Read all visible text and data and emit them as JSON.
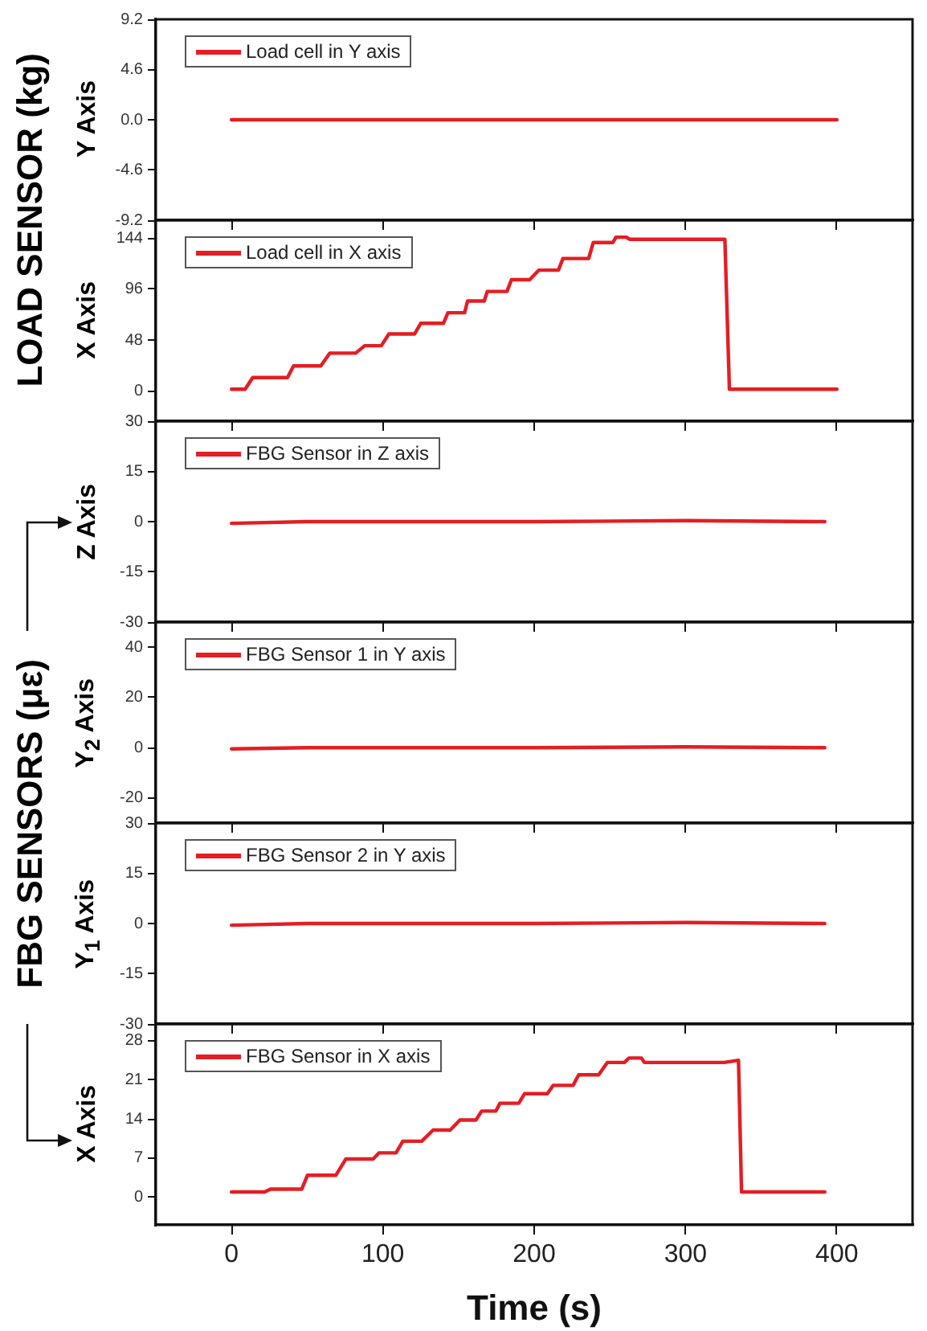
{
  "chart_data": [
    {
      "type": "line",
      "ylabel": "Y Axis",
      "annotations": [
        "LOAD SENSOR (kg)"
      ],
      "xlim": [
        -50,
        450
      ],
      "xticks": [
        0,
        100,
        200,
        300,
        400
      ],
      "ylim": [
        -9.2,
        9.2
      ],
      "yticks": [
        -9.2,
        -4.6,
        {
          "value": 0,
          "label": "0.0"
        },
        4.6,
        9.2
      ],
      "grid": false,
      "legend": "top left",
      "tick_labels": "y",
      "series": [
        {
          "name": "Load cell in Y axis",
          "color": "#e31e24",
          "x": [
            0,
            100,
            200,
            300,
            400
          ],
          "values": [
            0,
            0,
            0,
            0,
            0
          ]
        }
      ]
    },
    {
      "type": "line",
      "ylabel": "X Axis",
      "xlim": [
        -50,
        450
      ],
      "xticks": [
        0,
        100,
        200,
        300,
        400
      ],
      "ylim": [
        -28,
        161
      ],
      "yticks": [
        0,
        48,
        96,
        144
      ],
      "grid": false,
      "legend": "top left",
      "tick_labels": "y",
      "series": [
        {
          "name": "Load cell in X axis",
          "color": "#e31e24",
          "x": [
            0,
            9,
            14,
            37,
            41,
            59,
            65,
            82,
            88,
            99,
            104,
            121,
            125,
            140,
            143,
            154,
            156,
            167,
            169,
            182,
            185,
            197,
            203,
            216,
            219,
            236,
            239,
            252,
            254,
            261,
            263,
            320,
            326,
            329,
            400
          ],
          "values": [
            2,
            2,
            13,
            13,
            24,
            24,
            36,
            36,
            43,
            43,
            54,
            54,
            64,
            64,
            74,
            74,
            85,
            85,
            94,
            94,
            105,
            105,
            114,
            114,
            125,
            125,
            140,
            140,
            145,
            145,
            143,
            143,
            143,
            2,
            2
          ]
        }
      ]
    },
    {
      "type": "line",
      "ylabel": "Z Axis",
      "annotations": [
        "FBG SENSORS (με)"
      ],
      "xlim": [
        -50,
        450
      ],
      "xticks": [
        0,
        100,
        200,
        300,
        400
      ],
      "ylim": [
        -30,
        30
      ],
      "yticks": [
        -30,
        -15,
        0,
        15,
        30
      ],
      "grid": false,
      "legend": "top left",
      "tick_labels": "y",
      "series": [
        {
          "name": "FBG Sensor in Z axis",
          "color": "#e31e24",
          "x": [
            0,
            50,
            100,
            200,
            300,
            392
          ],
          "values": [
            -0.5,
            0,
            0,
            0,
            0.3,
            0
          ]
        }
      ]
    },
    {
      "type": "line",
      "ylabel": "Y$_{2}$ Axis",
      "xlim": [
        -50,
        450
      ],
      "xticks": [
        0,
        100,
        200,
        300,
        400
      ],
      "ylim": [
        -30,
        50
      ],
      "yticks": [
        -20,
        0,
        20,
        40
      ],
      "grid": false,
      "legend": "top left",
      "tick_labels": "y",
      "series": [
        {
          "name": "FBG Sensor 1 in Y axis",
          "color": "#e31e24",
          "x": [
            0,
            50,
            100,
            200,
            300,
            392
          ],
          "values": [
            -0.5,
            0,
            0,
            0,
            0.3,
            0
          ]
        }
      ]
    },
    {
      "type": "line",
      "ylabel": "Y$_{1}$ Axis",
      "xlim": [
        -50,
        450
      ],
      "xticks": [
        0,
        100,
        200,
        300,
        400
      ],
      "ylim": [
        -30,
        30
      ],
      "yticks": [
        -30,
        -15,
        0,
        15,
        30
      ],
      "grid": false,
      "legend": "top left",
      "tick_labels": "y",
      "series": [
        {
          "name": "FBG Sensor 2 in Y axis",
          "color": "#e31e24",
          "x": [
            0,
            50,
            100,
            200,
            300,
            392
          ],
          "values": [
            -0.5,
            0,
            0,
            0,
            0.3,
            0
          ]
        }
      ]
    },
    {
      "type": "line",
      "ylabel": "X Axis",
      "xlabel": "Time (s)",
      "xlim": [
        -50,
        450
      ],
      "xticks": [
        0,
        100,
        200,
        300,
        400
      ],
      "ylim": [
        -5,
        31
      ],
      "yticks": [
        0,
        7,
        14,
        21,
        28
      ],
      "grid": false,
      "legend": "top left",
      "series": [
        {
          "name": "FBG Sensor in X axis",
          "color": "#e31e24",
          "x": [
            0,
            21.9,
            25.7,
            46.4,
            50.2,
            69,
            75.5,
            93.6,
            97.4,
            108.7,
            113.2,
            125.7,
            133.2,
            144.5,
            150.9,
            161.5,
            165.3,
            174.7,
            177.4,
            189.8,
            193.6,
            208.7,
            212.5,
            225.7,
            229.4,
            242.6,
            248.3,
            259.6,
            262.6,
            270.9,
            272.8,
            325.7,
            335,
            337,
            392
          ],
          "values": [
            0.9,
            0.9,
            1.4,
            1.4,
            3.9,
            3.9,
            6.8,
            6.8,
            7.9,
            7.9,
            10,
            10,
            12,
            12,
            13.8,
            13.8,
            15.4,
            15.4,
            16.8,
            16.8,
            18.5,
            18.5,
            20,
            20,
            21.9,
            21.9,
            24.1,
            24.1,
            24.9,
            24.9,
            24.1,
            24.1,
            24.5,
            0.9,
            0.9
          ]
        }
      ]
    }
  ]
}
